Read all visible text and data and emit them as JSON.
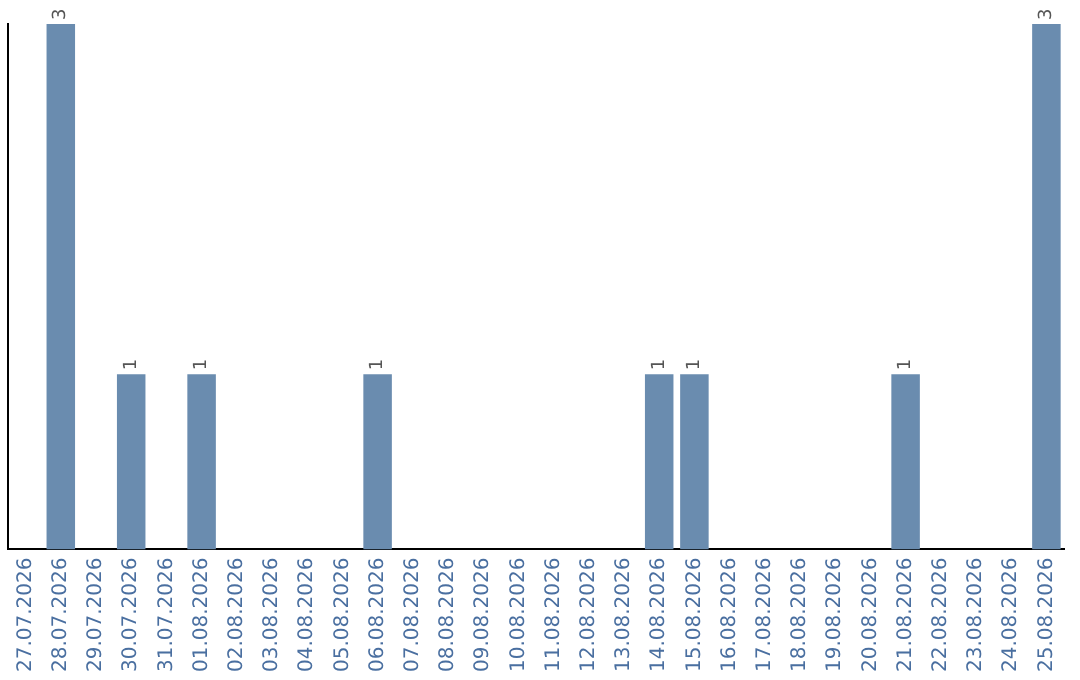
{
  "chart_data": {
    "type": "bar",
    "categories": [
      "27.07.2026",
      "28.07.2026",
      "29.07.2026",
      "30.07.2026",
      "31.07.2026",
      "01.08.2026",
      "02.08.2026",
      "03.08.2026",
      "04.08.2026",
      "05.08.2026",
      "06.08.2026",
      "07.08.2026",
      "08.08.2026",
      "09.08.2026",
      "10.08.2026",
      "11.08.2026",
      "12.08.2026",
      "13.08.2026",
      "14.08.2026",
      "15.08.2026",
      "16.08.2026",
      "17.08.2026",
      "18.08.2026",
      "19.08.2026",
      "20.08.2026",
      "21.08.2026",
      "22.08.2026",
      "23.08.2026",
      "24.08.2026",
      "25.08.2026"
    ],
    "values": [
      0,
      3,
      0,
      1,
      0,
      1,
      0,
      0,
      0,
      0,
      1,
      0,
      0,
      0,
      0,
      0,
      0,
      0,
      1,
      1,
      0,
      0,
      0,
      0,
      0,
      1,
      0,
      0,
      0,
      3
    ],
    "value_labels": [
      null,
      "3",
      null,
      "1",
      null,
      "1",
      null,
      null,
      null,
      null,
      "1",
      null,
      null,
      null,
      null,
      null,
      null,
      null,
      "1",
      "1",
      null,
      null,
      null,
      null,
      null,
      "1",
      null,
      null,
      null,
      "3"
    ],
    "color": "#6a8caf",
    "grid": false,
    "legend": false
  }
}
